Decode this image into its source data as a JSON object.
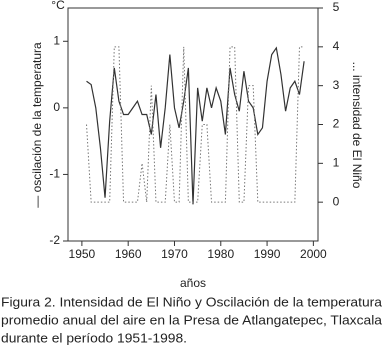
{
  "chart_data": {
    "type": "line",
    "y_label": "— oscilación de la temperatura",
    "y2_label": "... intensidad de El Niño",
    "y_unit": "°C",
    "x_label": "años",
    "caption": [
      "Figura 2. Intensidad de El Niño y Oscilación de la temperatura",
      "promedio anual del aire en la Presa de Atlangatepec, Tlaxcala",
      "durante el período 1951-1998."
    ],
    "x": [
      1951,
      1952,
      1953,
      1954,
      1955,
      1956,
      1957,
      1958,
      1959,
      1960,
      1961,
      1962,
      1963,
      1964,
      1965,
      1966,
      1967,
      1968,
      1969,
      1970,
      1971,
      1972,
      1973,
      1974,
      1975,
      1976,
      1977,
      1978,
      1979,
      1980,
      1981,
      1982,
      1983,
      1984,
      1985,
      1986,
      1987,
      1988,
      1989,
      1990,
      1991,
      1992,
      1993,
      1994,
      1995,
      1996,
      1997,
      1998
    ],
    "series": [
      {
        "color": "#333333",
        "dash": "solid",
        "axis": "y",
        "values": [
          0.4,
          0.35,
          0.0,
          -0.6,
          -1.35,
          -0.2,
          0.6,
          0.1,
          -0.1,
          -0.1,
          0.0,
          0.1,
          -0.1,
          -0.1,
          -0.4,
          0.2,
          -0.6,
          0.0,
          0.8,
          0.0,
          -0.3,
          0.1,
          0.6,
          -1.45,
          0.3,
          -0.2,
          0.3,
          0.0,
          0.3,
          0.1,
          -0.4,
          0.6,
          0.2,
          -0.05,
          0.55,
          0.1,
          0.0,
          -0.4,
          -0.3,
          0.4,
          0.8,
          0.9,
          0.5,
          -0.05,
          0.3,
          0.4,
          0.2,
          0.7
        ]
      },
      {
        "color": "#777777",
        "dash": "dotted",
        "axis": "y2",
        "values": [
          2,
          0,
          0,
          0,
          0,
          0,
          4,
          4,
          0,
          0,
          0,
          0,
          1,
          0,
          3,
          0,
          0,
          0,
          2,
          0,
          0,
          4,
          0,
          0,
          0,
          2,
          2,
          0,
          0,
          0,
          0,
          4,
          4,
          0,
          0,
          3,
          3,
          0,
          0,
          0,
          0,
          0,
          0,
          0,
          0,
          0,
          4,
          4
        ]
      }
    ],
    "xlim": [
      1947,
      2001
    ],
    "xticks": [
      1950,
      1960,
      1970,
      1980,
      1990,
      2000
    ],
    "ylim": [
      -2,
      1.5
    ],
    "yticks": [
      -2,
      -1,
      0,
      1
    ],
    "y2lim": [
      -1,
      5
    ],
    "y2ticks": [
      0,
      1,
      2,
      3,
      4,
      5
    ]
  }
}
